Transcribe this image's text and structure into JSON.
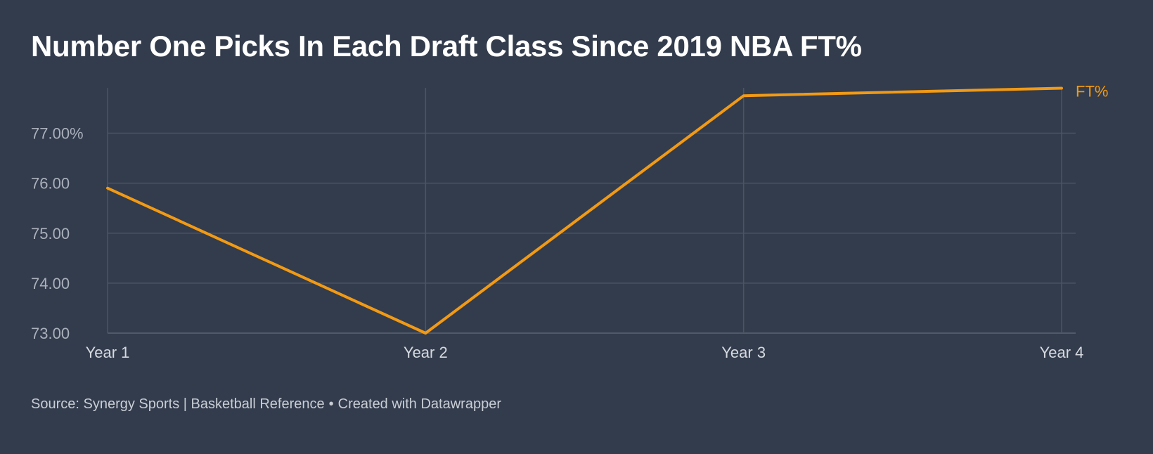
{
  "colors": {
    "background": "#333c4c",
    "series": "#f29a14",
    "grid": "#4a5466",
    "tick_text": "#aab1bc",
    "title_text": "#ffffff",
    "source_text": "#c9ced6"
  },
  "chart_data": {
    "type": "line",
    "title": "Number One Picks In Each Draft Class Since 2019 NBA FT%",
    "xlabel": "",
    "ylabel": "",
    "categories": [
      "Year 1",
      "Year 2",
      "Year 3",
      "Year 4"
    ],
    "series": [
      {
        "name": "FT%",
        "values": [
          75.9,
          73.0,
          77.75,
          77.9
        ]
      }
    ],
    "yticks": [
      73,
      74,
      75,
      76,
      77
    ],
    "ytick_labels": [
      "73.00",
      "74.00",
      "75.00",
      "76.00",
      "77.00%"
    ],
    "ylim": [
      73,
      77.9
    ],
    "grid": true,
    "legend": "direct label at end of line"
  },
  "footer": {
    "source": "Source: Synergy Sports | Basketball Reference",
    "separator": "•",
    "credit": "Created with Datawrapper"
  }
}
